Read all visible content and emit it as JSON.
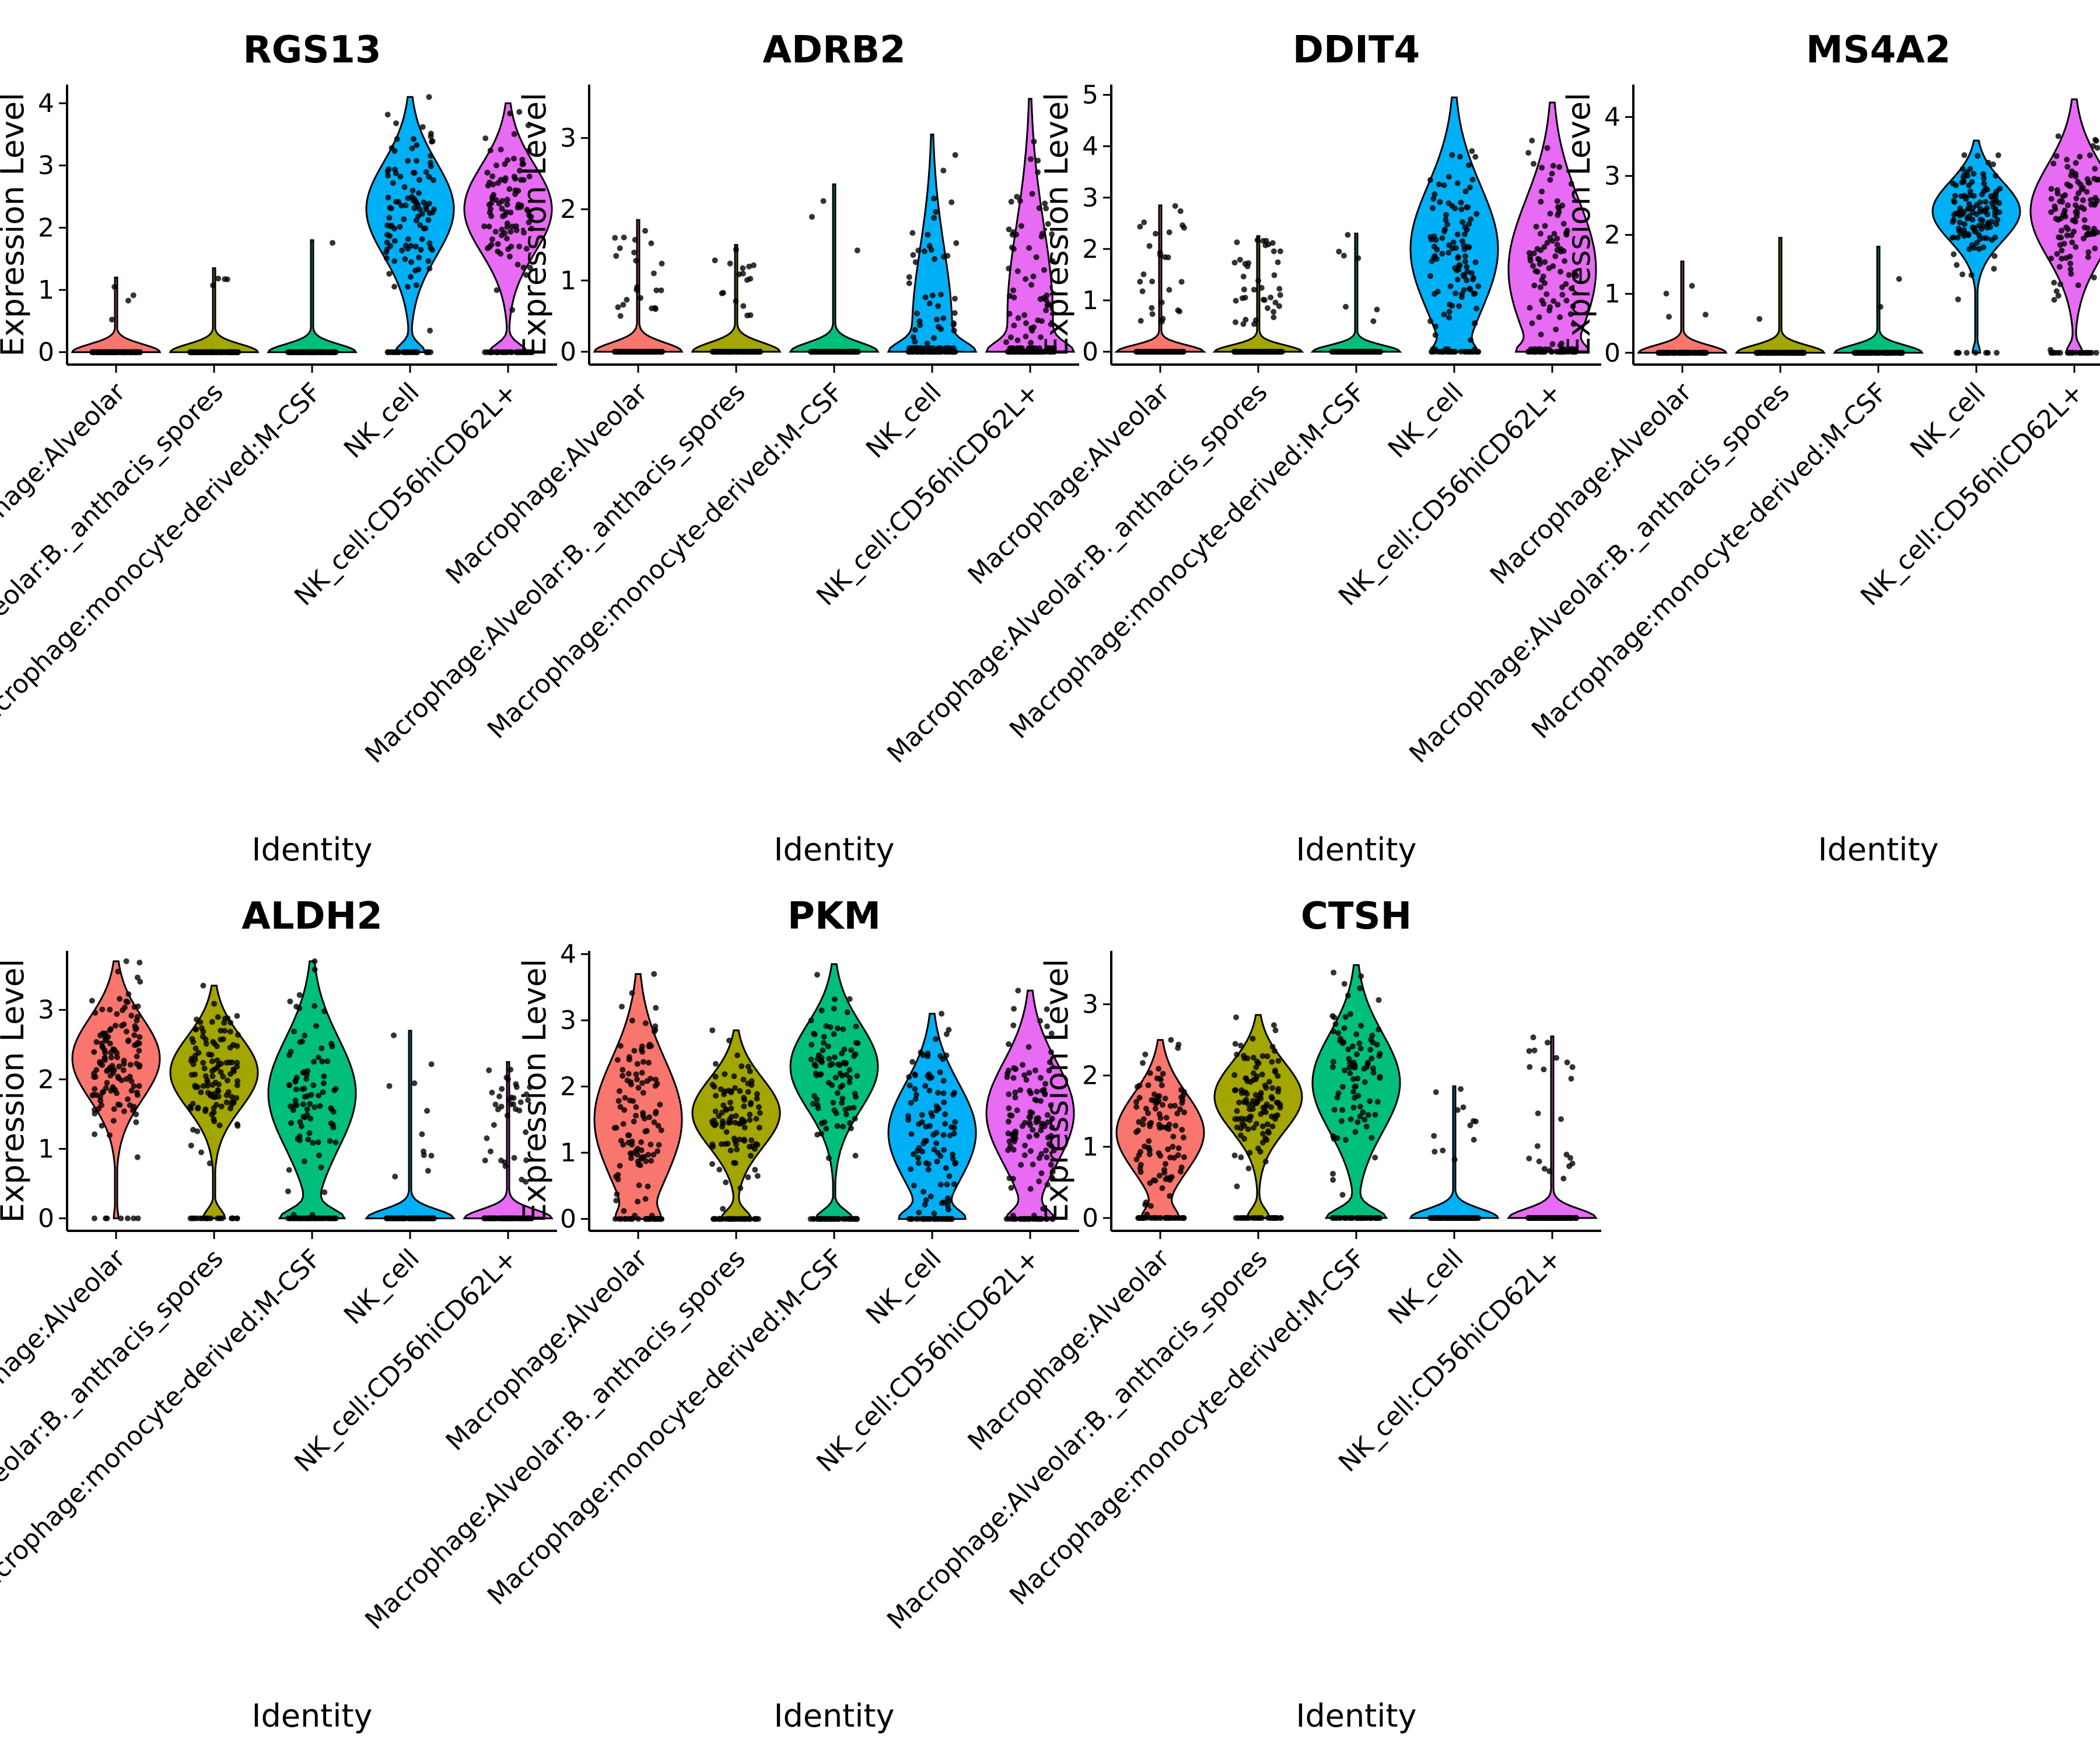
{
  "chart_data": [
    {
      "type": "violin",
      "title": "RGS13",
      "xlabel": "Identity",
      "ylabel": "Expression Level",
      "ylim": [
        -0.2,
        4.3
      ],
      "ticks": [
        0,
        1,
        2,
        3,
        4
      ],
      "categories": [
        "Macrophage:Alveolar",
        "Macrophage:Alveolar:B._anthacis_spores",
        "Macrophage:monocyte-derived:M-CSF",
        "NK_cell",
        "NK_cell:CD56hiCD62L+"
      ],
      "values": [
        {
          "median": 0,
          "max": 1.2,
          "zero_frac": 0.97
        },
        {
          "median": 0,
          "max": 1.35,
          "zero_frac": 0.97
        },
        {
          "median": 0,
          "max": 1.8,
          "zero_frac": 0.97
        },
        {
          "median": 2.3,
          "max": 4.1,
          "zero_frac": 0.25
        },
        {
          "median": 2.3,
          "max": 4.0,
          "zero_frac": 0.3
        }
      ]
    },
    {
      "type": "violin",
      "title": "ADRB2",
      "xlabel": "Identity",
      "ylabel": "Expression Level",
      "ylim": [
        -0.18,
        3.75
      ],
      "ticks": [
        0,
        1,
        2,
        3
      ],
      "categories": [
        "Macrophage:Alveolar",
        "Macrophage:Alveolar:B._anthacis_spores",
        "Macrophage:monocyte-derived:M-CSF",
        "NK_cell",
        "NK_cell:CD56hiCD62L+"
      ],
      "values": [
        {
          "median": 0,
          "max": 1.85,
          "zero_frac": 0.85
        },
        {
          "median": 0,
          "max": 1.5,
          "zero_frac": 0.9
        },
        {
          "median": 0,
          "max": 2.35,
          "zero_frac": 0.97
        },
        {
          "median": 0.3,
          "max": 3.05,
          "zero_frac": 0.55
        },
        {
          "median": 0.5,
          "max": 3.55,
          "zero_frac": 0.5
        }
      ]
    },
    {
      "type": "violin",
      "title": "DDIT4",
      "xlabel": "Identity",
      "ylabel": "Expression Level",
      "ylim": [
        -0.25,
        5.2
      ],
      "ticks": [
        0,
        1,
        2,
        3,
        4,
        5
      ],
      "categories": [
        "Macrophage:Alveolar",
        "Macrophage:Alveolar:B._anthacis_spores",
        "Macrophage:monocyte-derived:M-CSF",
        "NK_cell",
        "NK_cell:CD56hiCD62L+"
      ],
      "values": [
        {
          "median": 0,
          "max": 2.85,
          "zero_frac": 0.8
        },
        {
          "median": 0,
          "max": 2.25,
          "zero_frac": 0.7
        },
        {
          "median": 0,
          "max": 2.3,
          "zero_frac": 0.9
        },
        {
          "median": 2.0,
          "max": 4.95,
          "zero_frac": 0.2
        },
        {
          "median": 1.6,
          "max": 4.85,
          "zero_frac": 0.25
        }
      ]
    },
    {
      "type": "violin",
      "title": "MS4A2",
      "xlabel": "Identity",
      "ylabel": "Expression Level",
      "ylim": [
        -0.2,
        4.55
      ],
      "ticks": [
        0,
        1,
        2,
        3,
        4
      ],
      "categories": [
        "Macrophage:Alveolar",
        "Macrophage:Alveolar:B._anthacis_spores",
        "Macrophage:monocyte-derived:M-CSF",
        "NK_cell",
        "NK_cell:CD56hiCD62L+"
      ],
      "values": [
        {
          "median": 0,
          "max": 1.55,
          "zero_frac": 0.98
        },
        {
          "median": 0,
          "max": 1.95,
          "zero_frac": 0.99
        },
        {
          "median": 0,
          "max": 1.8,
          "zero_frac": 0.98
        },
        {
          "median": 2.4,
          "max": 3.6,
          "zero_frac": 0.08
        },
        {
          "median": 2.4,
          "max": 4.3,
          "zero_frac": 0.15
        }
      ]
    },
    {
      "type": "violin",
      "title": "ALDH2",
      "xlabel": "Identity",
      "ylabel": "Expression Level",
      "ylim": [
        -0.18,
        3.85
      ],
      "ticks": [
        0,
        1,
        2,
        3
      ],
      "categories": [
        "Macrophage:Alveolar",
        "Macrophage:Alveolar:B._anthacis_spores",
        "Macrophage:monocyte-derived:M-CSF",
        "NK_cell",
        "NK_cell:CD56hiCD62L+"
      ],
      "values": [
        {
          "median": 2.3,
          "max": 3.7,
          "zero_frac": 0.05
        },
        {
          "median": 2.1,
          "max": 3.35,
          "zero_frac": 0.2
        },
        {
          "median": 1.8,
          "max": 3.7,
          "zero_frac": 0.4
        },
        {
          "median": 0,
          "max": 2.7,
          "zero_frac": 0.88
        },
        {
          "median": 0,
          "max": 2.25,
          "zero_frac": 0.75
        }
      ]
    },
    {
      "type": "violin",
      "title": "PKM",
      "xlabel": "Identity",
      "ylabel": "Expression Level",
      "ylim": [
        -0.18,
        4.05
      ],
      "ticks": [
        0,
        1,
        2,
        3,
        4
      ],
      "categories": [
        "Macrophage:Alveolar",
        "Macrophage:Alveolar:B._anthacis_spores",
        "Macrophage:monocyte-derived:M-CSF",
        "NK_cell",
        "NK_cell:CD56hiCD62L+"
      ],
      "values": [
        {
          "median": 1.5,
          "max": 3.7,
          "zero_frac": 0.2
        },
        {
          "median": 1.6,
          "max": 2.85,
          "zero_frac": 0.25
        },
        {
          "median": 2.3,
          "max": 3.85,
          "zero_frac": 0.3
        },
        {
          "median": 1.3,
          "max": 3.1,
          "zero_frac": 0.35
        },
        {
          "median": 1.6,
          "max": 3.45,
          "zero_frac": 0.3
        }
      ]
    },
    {
      "type": "violin",
      "title": "CTSH",
      "xlabel": "Identity",
      "ylabel": "Expression Level",
      "ylim": [
        -0.18,
        3.75
      ],
      "ticks": [
        0,
        1,
        2,
        3
      ],
      "categories": [
        "Macrophage:Alveolar",
        "Macrophage:Alveolar:B._anthacis_spores",
        "Macrophage:monocyte-derived:M-CSF",
        "NK_cell",
        "NK_cell:CD56hiCD62L+"
      ],
      "values": [
        {
          "median": 1.2,
          "max": 2.5,
          "zero_frac": 0.25
        },
        {
          "median": 1.7,
          "max": 2.85,
          "zero_frac": 0.2
        },
        {
          "median": 1.9,
          "max": 3.55,
          "zero_frac": 0.4
        },
        {
          "median": 0,
          "max": 1.85,
          "zero_frac": 0.92
        },
        {
          "median": 0,
          "max": 2.55,
          "zero_frac": 0.85
        }
      ]
    }
  ],
  "colors": {
    "Macrophage:Alveolar": "#F8766D",
    "Macrophage:Alveolar:B._anthacis_spores": "#A3A500",
    "Macrophage:monocyte-derived:M-CSF": "#00BF7D",
    "NK_cell": "#00B0F6",
    "NK_cell:CD56hiCD62L+": "#E76BF3"
  }
}
